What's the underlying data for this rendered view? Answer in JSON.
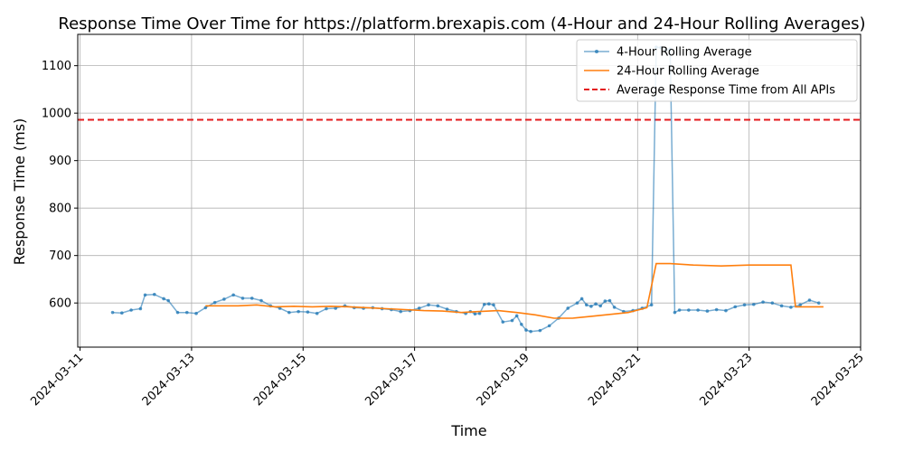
{
  "chart_data": {
    "type": "line",
    "title": "Response Time Over Time for https://platform.brexapis.com (4-Hour and 24-Hour Rolling Averages)",
    "xlabel": "Time",
    "ylabel": "Response Time (ms)",
    "x_ticks": [
      "2024-03-11",
      "2024-03-13",
      "2024-03-15",
      "2024-03-17",
      "2024-03-19",
      "2024-03-21",
      "2024-03-23",
      "2024-03-25"
    ],
    "y_ticks": [
      600,
      700,
      800,
      900,
      1000,
      1100
    ],
    "xlim": [
      "2024-03-10T23:00",
      "2024-03-25T00:00"
    ],
    "ylim": [
      507,
      1166
    ],
    "grid": true,
    "legend_position": "top-right",
    "reference_line": {
      "name": "Average Response Time from All APIs",
      "value": 986,
      "color": "#e41a1c",
      "style": "dashed"
    },
    "series": [
      {
        "name": "4-Hour Rolling Average",
        "color": "#1f77b4",
        "marker": "dot",
        "points": [
          [
            "2024-03-11T14:00",
            580
          ],
          [
            "2024-03-11T18:00",
            579
          ],
          [
            "2024-03-11T22:00",
            585
          ],
          [
            "2024-03-12T02:00",
            588
          ],
          [
            "2024-03-12T04:00",
            617
          ],
          [
            "2024-03-12T08:00",
            618
          ],
          [
            "2024-03-12T12:00",
            609
          ],
          [
            "2024-03-12T14:00",
            605
          ],
          [
            "2024-03-12T18:00",
            580
          ],
          [
            "2024-03-12T22:00",
            580
          ],
          [
            "2024-03-13T02:00",
            578
          ],
          [
            "2024-03-13T06:00",
            590
          ],
          [
            "2024-03-13T10:00",
            601
          ],
          [
            "2024-03-13T14:00",
            608
          ],
          [
            "2024-03-13T18:00",
            617
          ],
          [
            "2024-03-13T22:00",
            610
          ],
          [
            "2024-03-14T02:00",
            610
          ],
          [
            "2024-03-14T06:00",
            605
          ],
          [
            "2024-03-14T10:00",
            594
          ],
          [
            "2024-03-14T14:00",
            589
          ],
          [
            "2024-03-14T18:00",
            580
          ],
          [
            "2024-03-14T22:00",
            582
          ],
          [
            "2024-03-15T02:00",
            581
          ],
          [
            "2024-03-15T06:00",
            578
          ],
          [
            "2024-03-15T10:00",
            588
          ],
          [
            "2024-03-15T14:00",
            589
          ],
          [
            "2024-03-15T18:00",
            594
          ],
          [
            "2024-03-15T22:00",
            590
          ],
          [
            "2024-03-16T02:00",
            589
          ],
          [
            "2024-03-16T06:00",
            590
          ],
          [
            "2024-03-16T10:00",
            588
          ],
          [
            "2024-03-16T14:00",
            586
          ],
          [
            "2024-03-16T18:00",
            582
          ],
          [
            "2024-03-16T22:00",
            584
          ],
          [
            "2024-03-17T02:00",
            589
          ],
          [
            "2024-03-17T06:00",
            596
          ],
          [
            "2024-03-17T10:00",
            594
          ],
          [
            "2024-03-17T14:00",
            587
          ],
          [
            "2024-03-17T18:00",
            582
          ],
          [
            "2024-03-17T22:00",
            578
          ],
          [
            "2024-03-18T00:00",
            582
          ],
          [
            "2024-03-18T02:00",
            577
          ],
          [
            "2024-03-18T04:00",
            578
          ],
          [
            "2024-03-18T06:00",
            597
          ],
          [
            "2024-03-18T08:00",
            598
          ],
          [
            "2024-03-18T10:00",
            596
          ],
          [
            "2024-03-18T14:00",
            560
          ],
          [
            "2024-03-18T18:00",
            563
          ],
          [
            "2024-03-18T20:00",
            573
          ],
          [
            "2024-03-18T22:00",
            555
          ],
          [
            "2024-03-19T00:00",
            543
          ],
          [
            "2024-03-19T02:00",
            540
          ],
          [
            "2024-03-19T06:00",
            542
          ],
          [
            "2024-03-19T10:00",
            552
          ],
          [
            "2024-03-19T14:00",
            568
          ],
          [
            "2024-03-19T18:00",
            589
          ],
          [
            "2024-03-19T22:00",
            600
          ],
          [
            "2024-03-20T00:00",
            609
          ],
          [
            "2024-03-20T02:00",
            596
          ],
          [
            "2024-03-20T04:00",
            593
          ],
          [
            "2024-03-20T06:00",
            598
          ],
          [
            "2024-03-20T08:00",
            594
          ],
          [
            "2024-03-20T10:00",
            604
          ],
          [
            "2024-03-20T12:00",
            605
          ],
          [
            "2024-03-20T14:00",
            591
          ],
          [
            "2024-03-20T18:00",
            582
          ],
          [
            "2024-03-20T22:00",
            584
          ],
          [
            "2024-03-21T02:00",
            589
          ],
          [
            "2024-03-21T06:00",
            596
          ],
          [
            "2024-03-21T08:00",
            1139
          ],
          [
            "2024-03-21T10:00",
            1138
          ],
          [
            "2024-03-21T12:00",
            1133
          ],
          [
            "2024-03-21T14:00",
            1135
          ],
          [
            "2024-03-21T16:00",
            580
          ],
          [
            "2024-03-21T18:00",
            585
          ],
          [
            "2024-03-21T22:00",
            585
          ],
          [
            "2024-03-22T02:00",
            585
          ],
          [
            "2024-03-22T06:00",
            583
          ],
          [
            "2024-03-22T10:00",
            586
          ],
          [
            "2024-03-22T14:00",
            584
          ],
          [
            "2024-03-22T18:00",
            592
          ],
          [
            "2024-03-22T22:00",
            596
          ],
          [
            "2024-03-23T02:00",
            597
          ],
          [
            "2024-03-23T06:00",
            602
          ],
          [
            "2024-03-23T10:00",
            600
          ],
          [
            "2024-03-23T14:00",
            594
          ],
          [
            "2024-03-23T18:00",
            591
          ],
          [
            "2024-03-23T22:00",
            596
          ],
          [
            "2024-03-24T02:00",
            606
          ],
          [
            "2024-03-24T06:00",
            600
          ]
        ]
      },
      {
        "name": "24-Hour Rolling Average",
        "color": "#ff7f0e",
        "marker": "none",
        "points": [
          [
            "2024-03-13T06:00",
            594
          ],
          [
            "2024-03-13T20:00",
            594
          ],
          [
            "2024-03-14T04:00",
            596
          ],
          [
            "2024-03-14T12:00",
            592
          ],
          [
            "2024-03-14T20:00",
            593
          ],
          [
            "2024-03-15T04:00",
            592
          ],
          [
            "2024-03-15T12:00",
            593
          ],
          [
            "2024-03-15T20:00",
            592
          ],
          [
            "2024-03-16T04:00",
            590
          ],
          [
            "2024-03-16T12:00",
            588
          ],
          [
            "2024-03-16T20:00",
            586
          ],
          [
            "2024-03-17T04:00",
            584
          ],
          [
            "2024-03-17T12:00",
            583
          ],
          [
            "2024-03-17T20:00",
            580
          ],
          [
            "2024-03-18T04:00",
            582
          ],
          [
            "2024-03-18T12:00",
            584
          ],
          [
            "2024-03-18T20:00",
            580
          ],
          [
            "2024-03-19T04:00",
            575
          ],
          [
            "2024-03-19T12:00",
            568
          ],
          [
            "2024-03-19T20:00",
            568
          ],
          [
            "2024-03-20T04:00",
            572
          ],
          [
            "2024-03-20T12:00",
            576
          ],
          [
            "2024-03-20T20:00",
            580
          ],
          [
            "2024-03-21T04:00",
            590
          ],
          [
            "2024-03-21T08:00",
            683
          ],
          [
            "2024-03-21T14:00",
            683
          ],
          [
            "2024-03-22T00:00",
            680
          ],
          [
            "2024-03-22T12:00",
            678
          ],
          [
            "2024-03-23T00:00",
            680
          ],
          [
            "2024-03-23T12:00",
            680
          ],
          [
            "2024-03-23T18:00",
            680
          ],
          [
            "2024-03-23T20:00",
            592
          ],
          [
            "2024-03-24T00:00",
            592
          ],
          [
            "2024-03-24T08:00",
            592
          ]
        ]
      }
    ]
  }
}
